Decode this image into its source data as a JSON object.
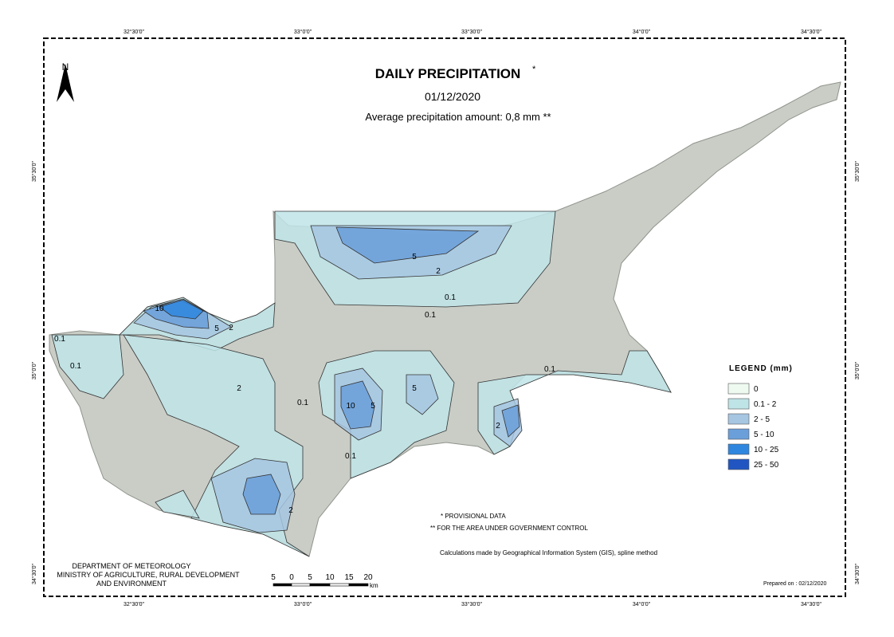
{
  "header": {
    "north": "N",
    "title": "DAILY PRECIPITATION",
    "title_mark": "*",
    "date": "01/12/2020",
    "average": "Average precipitation amount: 0,8 mm **"
  },
  "graticule": {
    "top": [
      "32°30'0\"",
      "33°0'0\"",
      "33°30'0\"",
      "34°0'0\"",
      "34°30'0\""
    ],
    "bottom": [
      "32°30'0\"",
      "33°0'0\"",
      "33°30'0\"",
      "34°0'0\"",
      "34°30'0\""
    ],
    "left": [
      "35°30'0\"",
      "35°0'0\"",
      "34°30'0\""
    ],
    "right": [
      "35°30'0\"",
      "35°0'0\"",
      "34°30'0\""
    ]
  },
  "legend": {
    "title": "LEGEND (mm)",
    "items": [
      {
        "label": "0",
        "color": "#eefaf0"
      },
      {
        "label": "0.1 - 2",
        "color": "#bfe4e8"
      },
      {
        "label": "2 - 5",
        "color": "#a6c6e2"
      },
      {
        "label": "5 - 10",
        "color": "#6a9fd9"
      },
      {
        "label": "10 - 25",
        "color": "#2f86de"
      },
      {
        "label": "25 - 50",
        "color": "#2156c2"
      }
    ]
  },
  "contour_labels": [
    "0.1",
    "0.1",
    "0.1",
    "0.1",
    "0.1",
    "0.1",
    "0.1",
    "2",
    "2",
    "2",
    "2",
    "2",
    "5",
    "5",
    "5",
    "5",
    "10",
    "10"
  ],
  "notes": {
    "provisional": "* PROVISIONAL DATA",
    "area": "** FOR THE AREA UNDER GOVERNMENT CONTROL",
    "method": "Calculations made by Geographical Information System (GIS), spline method",
    "prepared": "Prepared on : 02/12/2020"
  },
  "department": [
    "DEPARTMENT OF METEOROLOGY",
    "MINISTRY OF AGRICULTURE, RURAL DEVELOPMENT",
    "AND ENVIRONMENT"
  ],
  "scale": {
    "labels": [
      "5",
      "0",
      "5",
      "10",
      "15",
      "20"
    ],
    "unit": "km"
  }
}
